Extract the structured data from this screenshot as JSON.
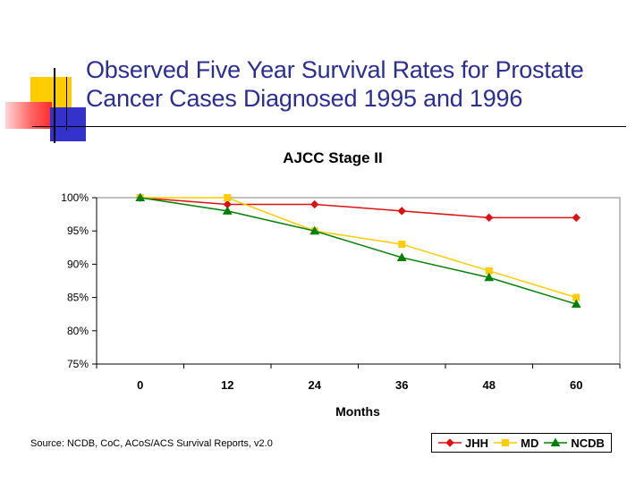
{
  "slide": {
    "title": "Observed Five Year Survival Rates for Prostate Cancer Cases Diagnosed 1995 and 1996",
    "source": "Source: NCDB, CoC, ACoS/ACS  Survival Reports, v2.0",
    "colors": {
      "title": "#2b2f8f",
      "deco_yellow": "#ffcc00",
      "deco_blue": "#3333cc",
      "deco_red": "#ff4d4d",
      "deco_line": "#000000"
    }
  },
  "chart_data": {
    "type": "line",
    "title": "AJCC Stage II",
    "xlabel": "Months",
    "ylabel": "",
    "x": [
      0,
      12,
      24,
      36,
      48,
      60
    ],
    "x_tick_labels": [
      "0",
      "12",
      "24",
      "36",
      "48",
      "60"
    ],
    "y_tick_labels": [
      "100%",
      "95%",
      "90%",
      "85%",
      "80%",
      "75%"
    ],
    "ylim": [
      75,
      100
    ],
    "y_ticks": [
      100,
      95,
      90,
      85,
      80,
      75
    ],
    "grid": false,
    "legend": "bottom-right",
    "series": [
      {
        "name": "JHH",
        "values": [
          100,
          99,
          99,
          98,
          97,
          97
        ],
        "color": "#dd1111",
        "marker": "diamond"
      },
      {
        "name": "MD",
        "values": [
          100,
          100,
          95,
          93,
          89,
          85
        ],
        "color": "#ffcc00",
        "marker": "square"
      },
      {
        "name": "NCDB",
        "values": [
          100,
          98,
          95,
          91,
          88,
          84
        ],
        "color": "#008000",
        "marker": "triangle"
      }
    ]
  }
}
